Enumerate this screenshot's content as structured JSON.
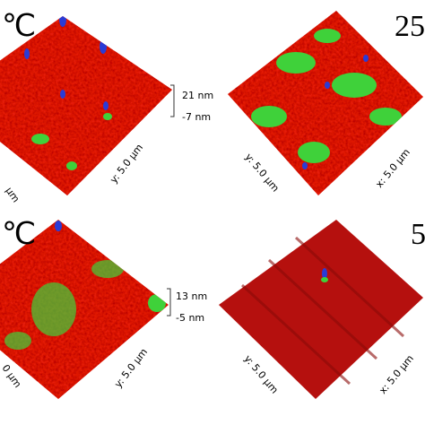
{
  "panels": [
    {
      "temperature": "℃",
      "scale_max": "21 nm",
      "scale_min": "-7 nm",
      "y_axis": "y: 5.0 µm",
      "x_axis": "µm"
    },
    {
      "temperature": "25",
      "y_axis": "y: 5.0 µm",
      "x_axis": "x: 5.0 µm"
    },
    {
      "temperature": "℃",
      "scale_max": "13 nm",
      "scale_min": "-5 nm",
      "y_axis": "y: 5.0 µm",
      "x_axis": "0 µm"
    },
    {
      "temperature": "5",
      "y_axis": "y: 5.0 µm",
      "x_axis": "x: 5.0 µm"
    }
  ]
}
